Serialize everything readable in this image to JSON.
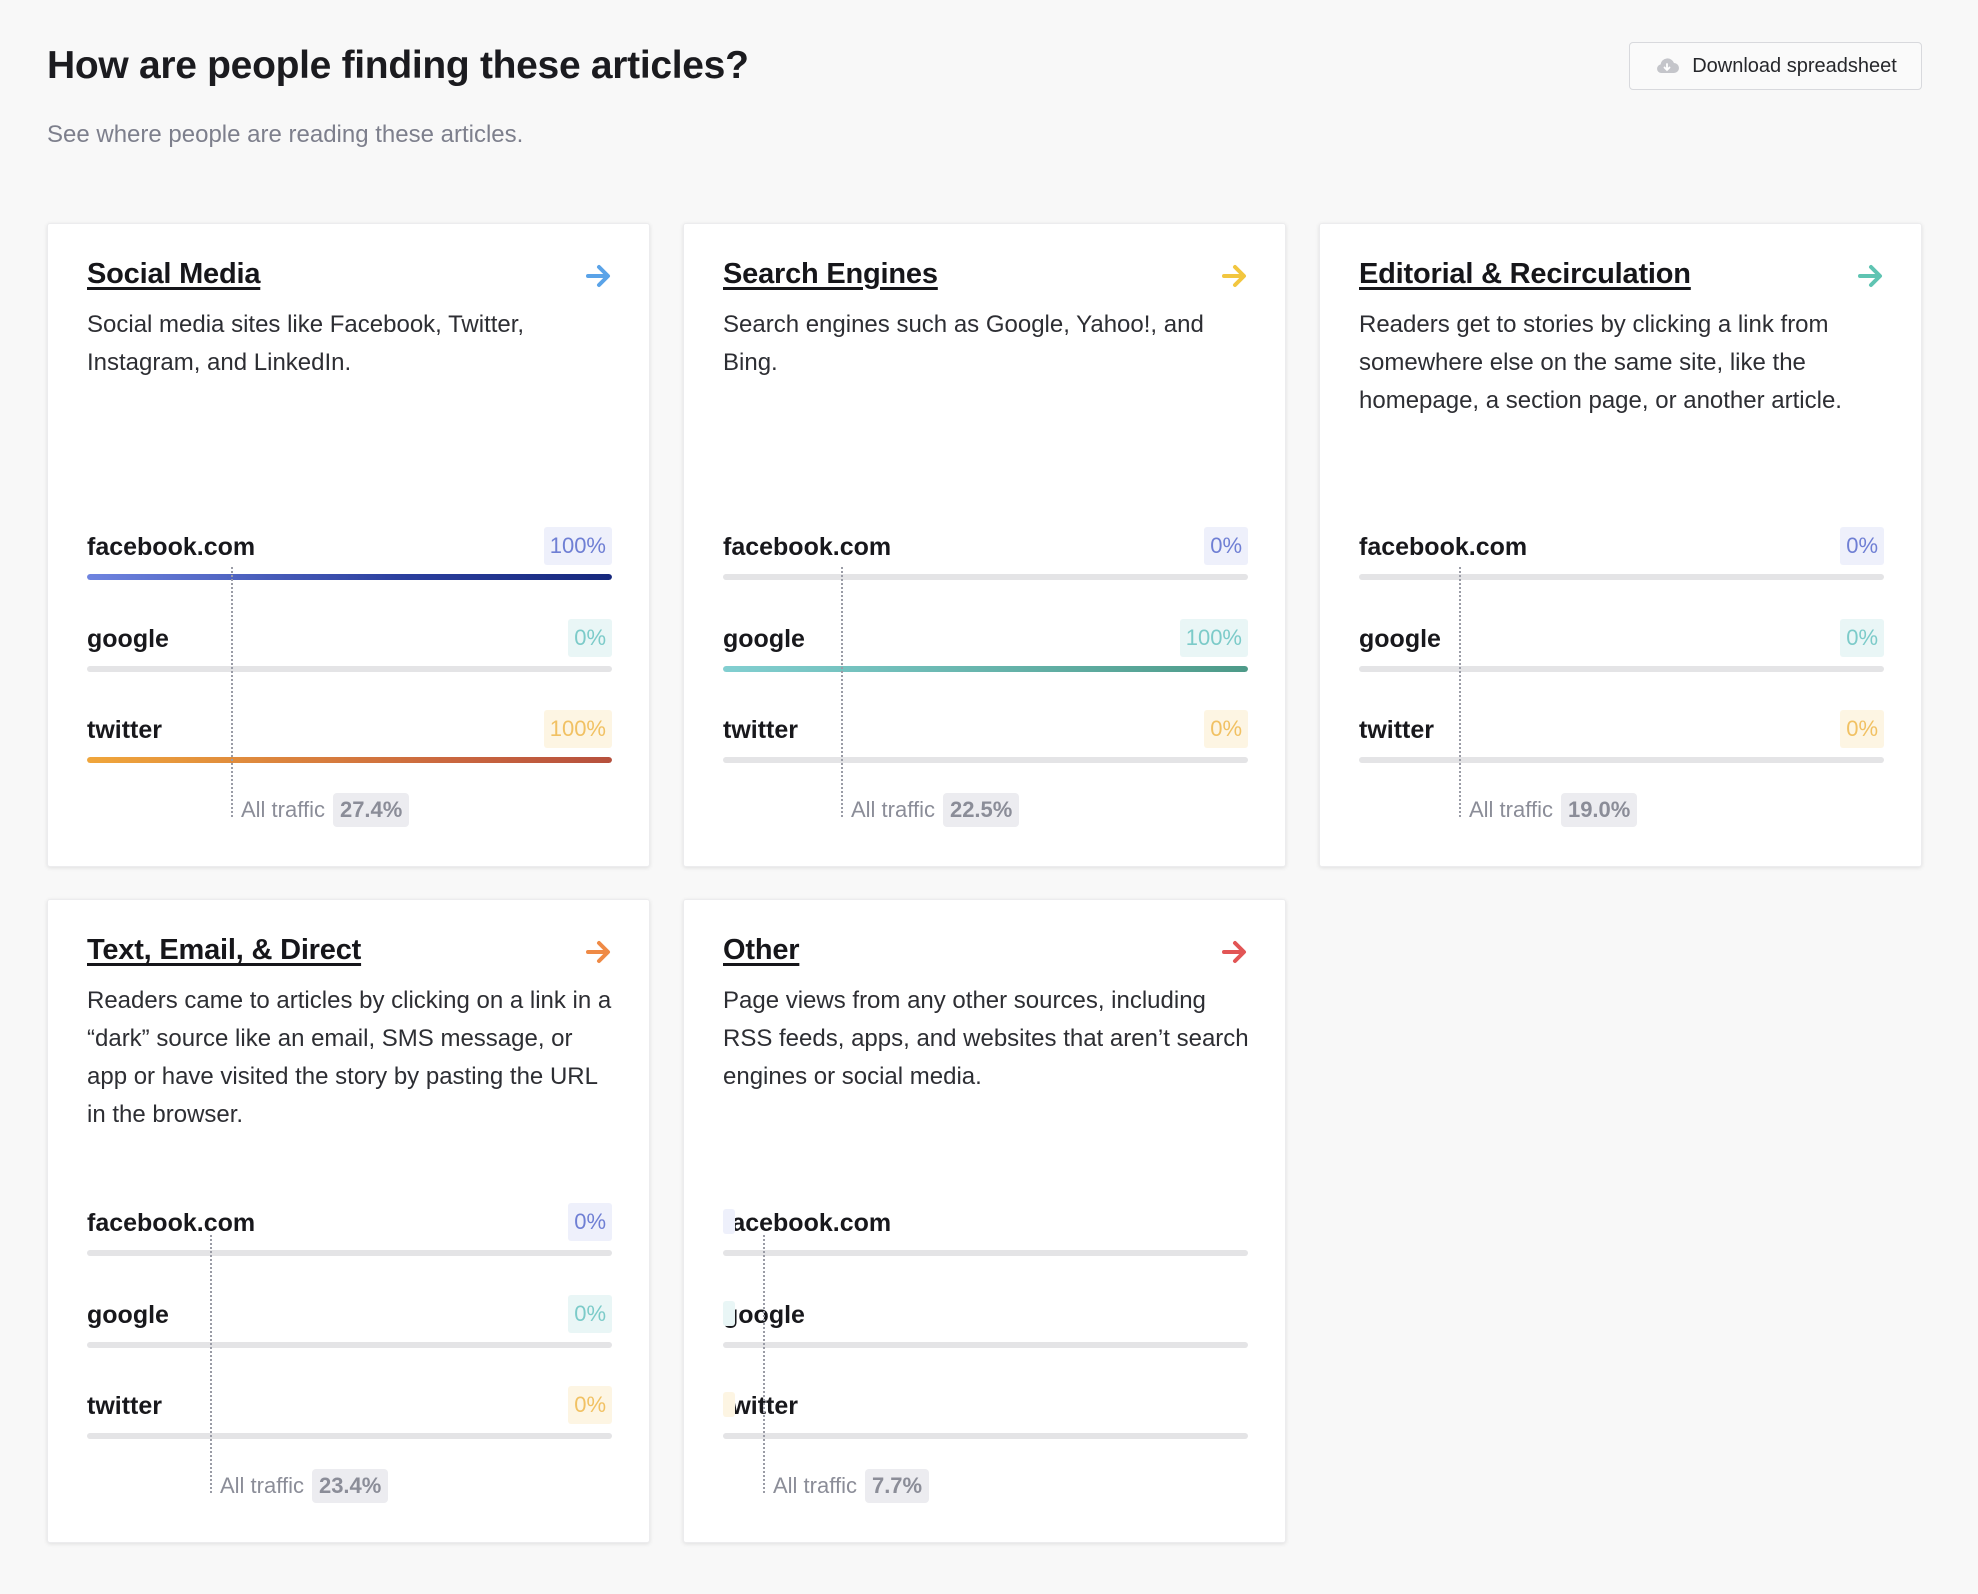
{
  "header": {
    "title": "How are people finding these articles?",
    "subtitle": "See where people are reading these articles.",
    "download_label": "Download spreadsheet",
    "download_icon": "cloud-download-icon"
  },
  "row_labels": [
    "facebook.com",
    "google",
    "twitter"
  ],
  "all_traffic_label": "All traffic",
  "colors": {
    "social_arrow": "#5aa3e8",
    "search_arrow": "#f2c63f",
    "editorial_arrow": "#5fc4b2",
    "text_arrow": "#ef8a45",
    "other_arrow": "#e25555"
  },
  "cards": [
    {
      "title": "Social Media",
      "description": "Social media sites like Facebook, Twitter, Instagram, and LinkedIn.",
      "all_traffic": "27.4%",
      "all_traffic_fraction": 0.274,
      "rows": [
        {
          "value": "100%",
          "fill": 1.0
        },
        {
          "value": "0%",
          "fill": 0
        },
        {
          "value": "100%",
          "fill": 1.0
        }
      ]
    },
    {
      "title": "Search Engines",
      "description": "Search engines such as Google, Yahoo!, and Bing.",
      "all_traffic": "22.5%",
      "all_traffic_fraction": 0.225,
      "rows": [
        {
          "value": "0%",
          "fill": 0
        },
        {
          "value": "100%",
          "fill": 1.0
        },
        {
          "value": "0%",
          "fill": 0
        }
      ]
    },
    {
      "title": "Editorial & Recirculation",
      "description": "Readers get to stories by clicking a link from somewhere else on the same site, like the homepage, a section page, or another article.",
      "all_traffic": "19.0%",
      "all_traffic_fraction": 0.19,
      "rows": [
        {
          "value": "0%",
          "fill": 0
        },
        {
          "value": "0%",
          "fill": 0
        },
        {
          "value": "0%",
          "fill": 0
        }
      ]
    },
    {
      "title": "Text, Email, & Direct",
      "description": "Readers came to articles by clicking on a link in a “dark” source like an email, SMS message, or app or have visited the story by pasting the URL in the browser.",
      "all_traffic": "23.4%",
      "all_traffic_fraction": 0.234,
      "rows": [
        {
          "value": "0%",
          "fill": 0
        },
        {
          "value": "0%",
          "fill": 0
        },
        {
          "value": "0%",
          "fill": 0
        }
      ]
    },
    {
      "title": "Other",
      "description": "Page views from any other sources, including RSS feeds, apps, and websites that aren’t search engines or social media.",
      "all_traffic": "7.7%",
      "all_traffic_fraction": 0.077,
      "rows": [
        {
          "value": "",
          "fill": 0
        },
        {
          "value": "",
          "fill": 0
        },
        {
          "value": "",
          "fill": 0
        }
      ]
    }
  ]
}
